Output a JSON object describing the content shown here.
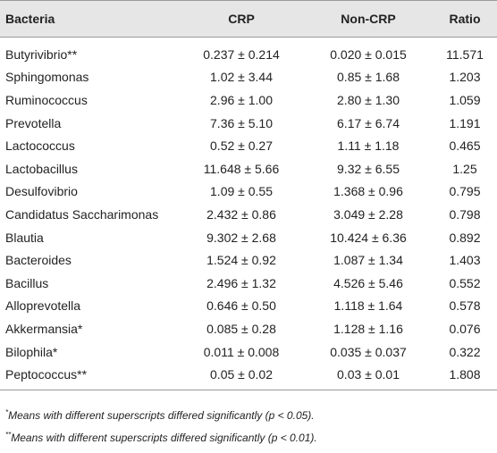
{
  "table": {
    "header": [
      "Bacteria",
      "CRP",
      "Non-CRP",
      "Ratio"
    ],
    "rows": [
      [
        "Butyrivibrio**",
        "0.237 ± 0.214",
        "0.020 ± 0.015",
        "11.571"
      ],
      [
        "Sphingomonas",
        "1.02 ± 3.44",
        "0.85 ± 1.68",
        "1.203"
      ],
      [
        "Ruminococcus",
        "2.96 ± 1.00",
        "2.80 ± 1.30",
        "1.059"
      ],
      [
        "Prevotella",
        "7.36 ± 5.10",
        "6.17 ± 6.74",
        "1.191"
      ],
      [
        "Lactococcus",
        "0.52 ± 0.27",
        "1.11 ± 1.18",
        "0.465"
      ],
      [
        "Lactobacillus",
        "11.648 ± 5.66",
        "9.32 ± 6.55",
        "1.25"
      ],
      [
        "Desulfovibrio",
        "1.09 ± 0.55",
        "1.368 ± 0.96",
        "0.795"
      ],
      [
        "Candidatus Saccharimonas",
        "2.432 ± 0.86",
        "3.049 ± 2.28",
        "0.798"
      ],
      [
        "Blautia",
        "9.302 ± 2.68",
        "10.424 ± 6.36",
        "0.892"
      ],
      [
        "Bacteroides",
        "1.524 ± 0.92",
        "1.087 ± 1.34",
        "1.403"
      ],
      [
        "Bacillus",
        "2.496 ± 1.32",
        "4.526 ± 5.46",
        "0.552"
      ],
      [
        "Alloprevotella",
        "0.646 ± 0.50",
        "1.118 ± 1.64",
        "0.578"
      ],
      [
        "Akkermansia*",
        "0.085 ± 0.28",
        "1.128 ± 1.16",
        "0.076"
      ],
      [
        "Bilophila*",
        "0.011 ± 0.008",
        "0.035 ± 0.037",
        "0.322"
      ],
      [
        "Peptococcus**",
        "0.05 ± 0.02",
        "0.03 ± 0.01",
        "1.808"
      ]
    ]
  },
  "footnotes": [
    {
      "marker": "*",
      "text": "Means with different superscripts differed significantly (p < 0.05)."
    },
    {
      "marker": "**",
      "text": "Means with different superscripts differed significantly (p < 0.01)."
    }
  ]
}
